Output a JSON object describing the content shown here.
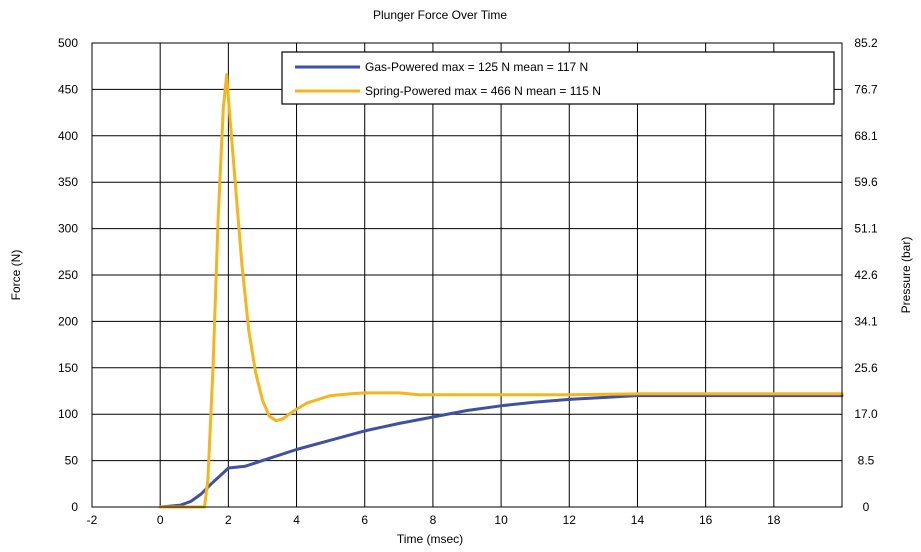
{
  "chart_data": {
    "type": "line",
    "title": "Plunger Force Over Time",
    "xlabel": "Time (msec)",
    "ylabel": "Force (N)",
    "y2label": "Pressure (bar)",
    "xlim": [
      -2,
      20
    ],
    "ylim": [
      0,
      500
    ],
    "y2lim": [
      0,
      85.2
    ],
    "grid": true,
    "legend_position": "top-right",
    "x_ticks": [
      "-2",
      "0",
      "2",
      "4",
      "6",
      "8",
      "10",
      "12",
      "14",
      "16",
      "18"
    ],
    "y_ticks": [
      "0",
      "50",
      "100",
      "150",
      "200",
      "250",
      "300",
      "350",
      "400",
      "450",
      "500"
    ],
    "y2_ticks": [
      "0",
      "8.5",
      "17.0",
      "25.6",
      "34.1",
      "42.6",
      "51.1",
      "59.6",
      "68.1",
      "76.7",
      "85.2"
    ],
    "series": [
      {
        "name": "Gas-Powered max = 125 N mean = 117 N",
        "color": "#3f51a0",
        "points": [
          [
            0,
            0
          ],
          [
            0.3,
            1
          ],
          [
            0.6,
            2
          ],
          [
            0.9,
            6
          ],
          [
            1.2,
            14
          ],
          [
            1.5,
            25
          ],
          [
            1.8,
            35
          ],
          [
            2.0,
            42
          ],
          [
            2.5,
            44
          ],
          [
            3,
            50
          ],
          [
            4,
            62
          ],
          [
            5,
            72
          ],
          [
            6,
            82
          ],
          [
            7,
            90
          ],
          [
            8,
            97
          ],
          [
            9,
            104
          ],
          [
            10,
            109
          ],
          [
            11,
            113
          ],
          [
            12,
            116
          ],
          [
            13,
            118
          ],
          [
            14,
            120
          ],
          [
            16,
            120
          ],
          [
            18,
            120
          ],
          [
            20,
            120
          ]
        ]
      },
      {
        "name": "Spring-Powered max = 466 N mean = 115 N",
        "color": "#f5b51b",
        "points": [
          [
            0,
            0
          ],
          [
            1.0,
            0
          ],
          [
            1.3,
            0
          ],
          [
            1.4,
            30
          ],
          [
            1.55,
            150
          ],
          [
            1.7,
            310
          ],
          [
            1.85,
            430
          ],
          [
            1.95,
            466
          ],
          [
            2.0,
            440
          ],
          [
            2.2,
            350
          ],
          [
            2.4,
            260
          ],
          [
            2.6,
            190
          ],
          [
            2.8,
            145
          ],
          [
            3.0,
            115
          ],
          [
            3.2,
            98
          ],
          [
            3.4,
            93
          ],
          [
            3.6,
            95
          ],
          [
            3.9,
            103
          ],
          [
            4.3,
            112
          ],
          [
            5.0,
            120
          ],
          [
            5.6,
            122
          ],
          [
            6.0,
            123
          ],
          [
            7.0,
            123
          ],
          [
            7.6,
            121
          ],
          [
            9,
            121
          ],
          [
            12,
            121
          ],
          [
            14,
            122
          ],
          [
            16,
            122
          ],
          [
            18,
            122
          ],
          [
            20,
            122
          ]
        ]
      }
    ]
  }
}
